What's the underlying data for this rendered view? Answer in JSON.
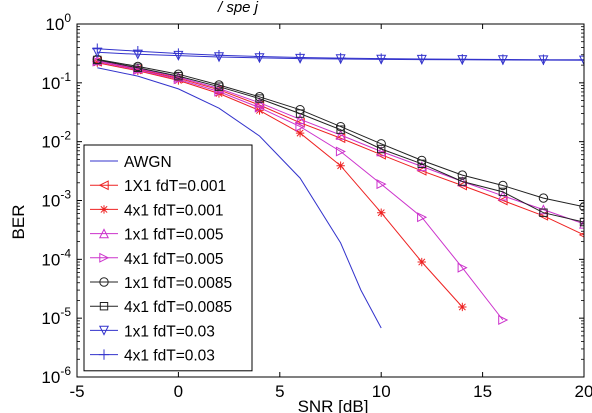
{
  "chart_data": {
    "type": "line",
    "title_fragment": "/ spe j",
    "xlabel": "SNR [dB]",
    "ylabel": "BER",
    "xlim": [
      -5,
      20
    ],
    "ylim": [
      1e-06,
      1
    ],
    "yscale": "log",
    "grid": false,
    "legend_position": "lower-left",
    "x_ticks": [
      -5,
      0,
      5,
      10,
      15,
      20
    ],
    "x_tick_labels": [
      "-5",
      "0",
      "5",
      "10",
      "15",
      "20"
    ],
    "y_ticks": [
      1e-06,
      1e-05,
      0.0001,
      0.001,
      0.01,
      0.1,
      1
    ],
    "y_tick_bases": [
      "10",
      "10",
      "10",
      "10",
      "10",
      "10",
      "10"
    ],
    "y_tick_exponents": [
      "-6",
      "-5",
      "-4",
      "-3",
      "-2",
      "-1",
      "0"
    ],
    "series": [
      {
        "name": "AWGN",
        "color": "#3333cc",
        "marker": "none",
        "x": [
          -4,
          -2,
          0,
          2,
          4,
          6,
          8,
          9,
          10
        ],
        "y": [
          0.18,
          0.13,
          0.079,
          0.037,
          0.0125,
          0.0024,
          0.00019,
          3e-05,
          6.8e-06
        ]
      },
      {
        "name": "1X1 fdT=0.001",
        "color": "#ee2222",
        "marker": "triangle-left",
        "x": [
          -4,
          -2,
          0,
          2,
          4,
          6,
          8,
          10,
          12,
          14,
          16,
          18,
          20
        ],
        "y": [
          0.23,
          0.17,
          0.12,
          0.076,
          0.042,
          0.021,
          0.0115,
          0.006,
          0.0032,
          0.0018,
          0.001,
          0.00055,
          0.00026
        ]
      },
      {
        "name": "4x1 fdT=0.001",
        "color": "#ee2222",
        "marker": "asterisk",
        "x": [
          -4,
          -2,
          0,
          2,
          4,
          6,
          8,
          10,
          12,
          14
        ],
        "y": [
          0.22,
          0.16,
          0.11,
          0.066,
          0.034,
          0.014,
          0.0039,
          0.00062,
          9e-05,
          1.55e-05
        ]
      },
      {
        "name": "1x1 fdT=0.005",
        "color": "#cc33cc",
        "marker": "triangle-up",
        "x": [
          -4,
          -2,
          0,
          2,
          4,
          6,
          8,
          10,
          12,
          14,
          16,
          18,
          20
        ],
        "y": [
          0.24,
          0.175,
          0.125,
          0.08,
          0.046,
          0.024,
          0.013,
          0.0068,
          0.0038,
          0.0021,
          0.0012,
          0.0007,
          0.0004
        ]
      },
      {
        "name": "4x1 fdT=0.005",
        "color": "#cc33cc",
        "marker": "triangle-right",
        "x": [
          -4,
          -2,
          0,
          2,
          4,
          6,
          8,
          10,
          12,
          14,
          16
        ],
        "y": [
          0.23,
          0.165,
          0.115,
          0.071,
          0.038,
          0.018,
          0.0068,
          0.0019,
          0.00052,
          7.2e-05,
          9.3e-06
        ]
      },
      {
        "name": "1x1 fdT=0.0085",
        "color": "#222222",
        "marker": "circle",
        "x": [
          -4,
          -2,
          0,
          2,
          4,
          6,
          8,
          10,
          12,
          14,
          16,
          18,
          20
        ],
        "y": [
          0.25,
          0.19,
          0.14,
          0.092,
          0.058,
          0.035,
          0.018,
          0.0092,
          0.0048,
          0.0027,
          0.0018,
          0.0011,
          0.00078
        ]
      },
      {
        "name": "4x1 fdT=0.0085",
        "color": "#222222",
        "marker": "square",
        "x": [
          -4,
          -2,
          0,
          2,
          4,
          6,
          8,
          10,
          12,
          14,
          16,
          18,
          20
        ],
        "y": [
          0.245,
          0.18,
          0.13,
          0.086,
          0.054,
          0.03,
          0.016,
          0.0075,
          0.0042,
          0.0021,
          0.0014,
          0.00062,
          0.00043
        ]
      },
      {
        "name": "1x1 fdT=0.03",
        "color": "#3333cc",
        "marker": "triangle-down",
        "x": [
          -4,
          -2,
          0,
          2,
          4,
          6,
          8,
          10,
          12,
          14,
          16,
          18,
          20
        ],
        "y": [
          0.33,
          0.305,
          0.29,
          0.275,
          0.265,
          0.258,
          0.254,
          0.25,
          0.248,
          0.246,
          0.244,
          0.243,
          0.242
        ]
      },
      {
        "name": "4x1 fdT=0.03",
        "color": "#3333cc",
        "marker": "plus",
        "x": [
          -4,
          -2,
          0,
          2,
          4,
          6,
          8,
          10,
          12,
          14,
          16,
          18,
          20
        ],
        "y": [
          0.38,
          0.345,
          0.315,
          0.295,
          0.28,
          0.27,
          0.263,
          0.258,
          0.254,
          0.251,
          0.249,
          0.247,
          0.246
        ]
      }
    ]
  }
}
